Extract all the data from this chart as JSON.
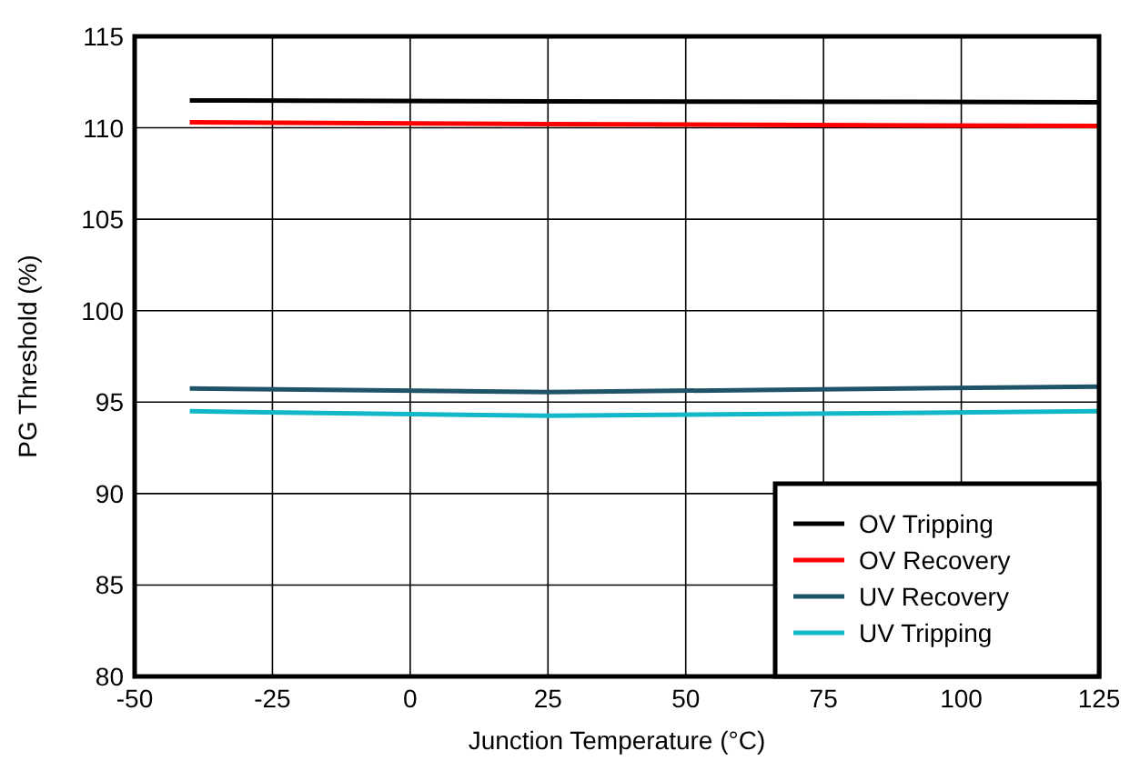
{
  "chart_data": {
    "type": "line",
    "xlabel": "Junction Temperature (°C)",
    "ylabel": "PG Threshold (%)",
    "x": [
      -40,
      25,
      125
    ],
    "series": [
      {
        "name": "OV Tripping",
        "color": "#000000",
        "values": [
          111.5,
          111.45,
          111.4
        ]
      },
      {
        "name": "OV Recovery",
        "color": "#ff0000",
        "values": [
          110.3,
          110.2,
          110.1
        ]
      },
      {
        "name": "UV Recovery",
        "color": "#1f5468",
        "values": [
          95.75,
          95.55,
          95.85
        ]
      },
      {
        "name": "UV Tripping",
        "color": "#12b8c8",
        "values": [
          94.5,
          94.25,
          94.5
        ]
      }
    ],
    "xlim": [
      -50,
      125
    ],
    "xticks": [
      -50,
      -25,
      0,
      25,
      50,
      75,
      100,
      125
    ],
    "ylim": [
      80,
      115
    ],
    "yticks": [
      80,
      85,
      90,
      95,
      100,
      105,
      110,
      115
    ],
    "grid": true,
    "legend": "bottom right",
    "line_style": "solid",
    "marker": "none"
  }
}
